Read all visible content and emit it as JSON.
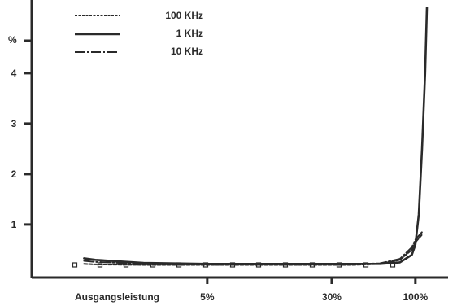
{
  "chart_data": {
    "type": "line",
    "title": "",
    "xlabel": "Ausgangsleistung",
    "ylabel": "%",
    "x_scale": "log",
    "x_ticks": [
      {
        "value": 5,
        "label": "5%"
      },
      {
        "value": 30,
        "label": "30%"
      },
      {
        "value": 100,
        "label": "100%"
      }
    ],
    "y_ticks": [
      {
        "value": 1,
        "label": "1"
      },
      {
        "value": 2,
        "label": "2"
      },
      {
        "value": 3,
        "label": "3"
      },
      {
        "value": 4,
        "label": "4"
      }
    ],
    "xlim": [
      0.4,
      160
    ],
    "ylim": [
      -0.05,
      5.45
    ],
    "grid": false,
    "legend_position": "top-left",
    "series": [
      {
        "name": "100 KHz",
        "style": "dashed",
        "color": "#2a2a2a",
        "x": [
          0.85,
          1,
          2,
          5,
          10,
          20,
          40,
          60,
          80,
          95,
          100,
          110
        ],
        "y": [
          0.22,
          0.21,
          0.2,
          0.2,
          0.2,
          0.2,
          0.2,
          0.22,
          0.3,
          0.5,
          0.65,
          0.8
        ]
      },
      {
        "name": "1 KHz",
        "style": "solid",
        "color": "#2a2a2a",
        "x": [
          0.85,
          1,
          2,
          5,
          10,
          20,
          40,
          60,
          80,
          95,
          100,
          105,
          110,
          115,
          118
        ],
        "y": [
          0.33,
          0.3,
          0.24,
          0.22,
          0.22,
          0.22,
          0.22,
          0.22,
          0.25,
          0.4,
          0.6,
          1.2,
          2.5,
          4.0,
          5.3
        ]
      },
      {
        "name": "10 KHz",
        "style": "dashdot",
        "color": "#2a2a2a",
        "x": [
          0.85,
          1,
          2,
          5,
          10,
          20,
          40,
          60,
          80,
          95,
          100,
          110
        ],
        "y": [
          0.28,
          0.26,
          0.22,
          0.21,
          0.21,
          0.21,
          0.21,
          0.23,
          0.32,
          0.55,
          0.7,
          0.85
        ]
      }
    ]
  }
}
